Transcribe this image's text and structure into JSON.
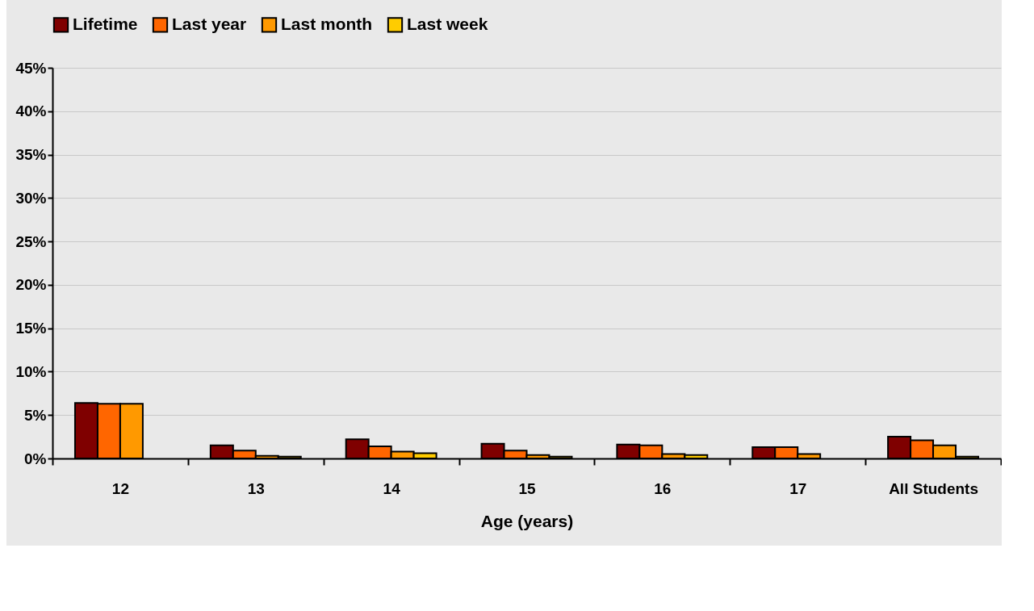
{
  "chart_data": {
    "type": "bar",
    "xlabel": "Age (years)",
    "categories": [
      "12",
      "13",
      "14",
      "15",
      "16",
      "17",
      "All Students"
    ],
    "series": [
      {
        "name": "Lifetime",
        "color": "#7f0000",
        "values": [
          6.4,
          1.5,
          2.2,
          1.7,
          1.6,
          1.3,
          2.5
        ]
      },
      {
        "name": "Last year",
        "color": "#ff6600",
        "values": [
          6.3,
          0.9,
          1.4,
          0.9,
          1.5,
          1.3,
          2.1
        ]
      },
      {
        "name": "Last month",
        "color": "#ff9900",
        "values": [
          6.3,
          0.3,
          0.8,
          0.4,
          0.5,
          0.5,
          1.5
        ]
      },
      {
        "name": "Last week",
        "color": "#ffcc00",
        "values": [
          null,
          0.2,
          0.6,
          0.2,
          0.4,
          null,
          0.2
        ]
      }
    ],
    "ylim": [
      0,
      45
    ],
    "yticks": [
      {
        "value": 0,
        "label": "0%"
      },
      {
        "value": 5,
        "label": "5%"
      },
      {
        "value": 10,
        "label": "10%"
      },
      {
        "value": 15,
        "label": "15%"
      },
      {
        "value": 20,
        "label": "20%"
      },
      {
        "value": 25,
        "label": "25%"
      },
      {
        "value": 30,
        "label": "30%"
      },
      {
        "value": 35,
        "label": "35%"
      },
      {
        "value": 40,
        "label": "40%"
      },
      {
        "value": 45,
        "label": "45%"
      }
    ],
    "grid": "y",
    "legend": "top"
  }
}
